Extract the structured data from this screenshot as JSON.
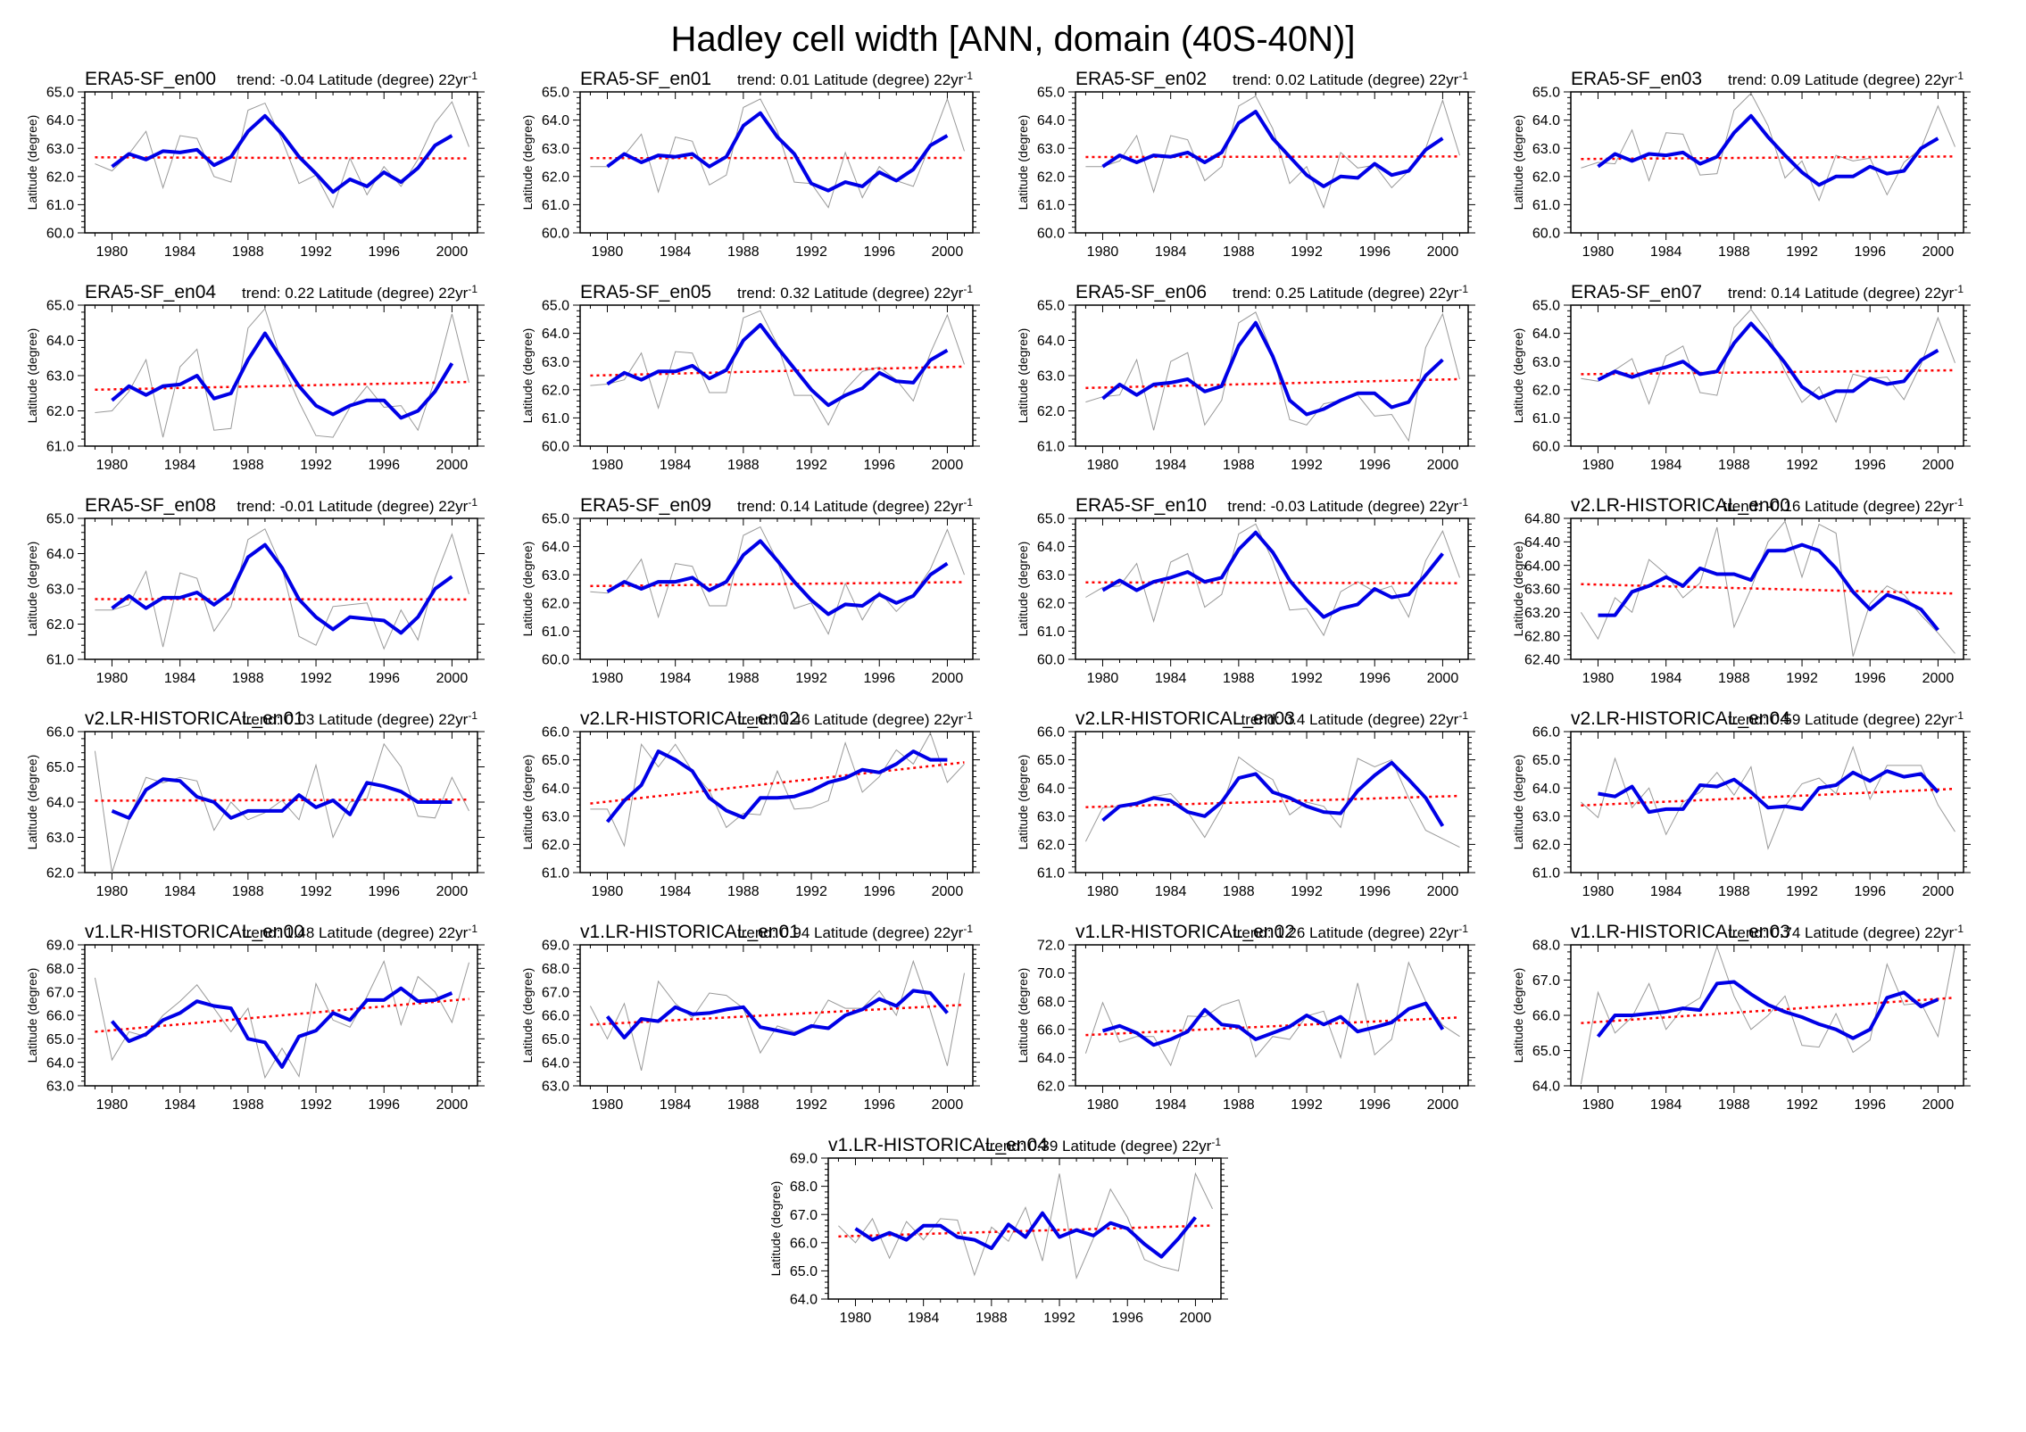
{
  "page_title": "Hadley cell width [ANN, domain (40S-40N)]",
  "axis": {
    "ylabel": "Latitude (degree)",
    "trend_prefix": "trend:",
    "trend_unit": "Latitude (degree) 22yr",
    "trend_exponent": "-1",
    "xticks": [
      1980,
      1984,
      1988,
      1992,
      1996,
      2000
    ],
    "xlim": [
      1978.4,
      2001.5
    ],
    "gray_start_year": 1979,
    "blue_start_year": 1980,
    "series_names": {
      "gray": "annual",
      "blue": "smoothed",
      "red": "linear trend"
    },
    "colors": {
      "gray": "#999999",
      "blue": "#0000e6",
      "red": "#ff0000",
      "frame": "#000000"
    }
  },
  "chart_data": [
    {
      "type": "line",
      "title": "ERA5-SF_en00",
      "trend": "-0.04",
      "ylim": [
        60,
        65
      ],
      "ystep": 1,
      "ydec": 1,
      "gray": [
        62.45,
        62.2,
        62.8,
        63.6,
        61.6,
        63.45,
        63.35,
        62.0,
        61.8,
        64.35,
        64.6,
        63.3,
        61.75,
        62.05,
        60.9,
        62.65,
        61.35,
        62.35,
        61.65,
        62.6,
        63.9,
        64.65,
        63.05
      ],
      "blue": [
        62.35,
        62.8,
        62.6,
        62.9,
        62.85,
        62.95,
        62.4,
        62.7,
        63.6,
        64.15,
        63.5,
        62.7,
        62.1,
        61.45,
        61.9,
        61.65,
        62.15,
        61.8,
        62.3,
        63.1,
        63.45
      ],
      "red": [
        62.68,
        62.64
      ]
    },
    {
      "type": "line",
      "title": "ERA5-SF_en01",
      "trend": "0.01",
      "ylim": [
        60,
        65
      ],
      "ystep": 1,
      "ydec": 1,
      "gray": [
        62.35,
        62.35,
        62.75,
        63.5,
        61.45,
        63.4,
        63.25,
        61.7,
        62.05,
        64.45,
        64.75,
        63.6,
        61.8,
        61.75,
        60.9,
        62.85,
        61.25,
        62.35,
        61.85,
        61.65,
        63.15,
        64.75,
        62.9
      ],
      "blue": [
        62.35,
        62.8,
        62.5,
        62.75,
        62.7,
        62.8,
        62.35,
        62.7,
        63.8,
        64.25,
        63.4,
        62.8,
        61.75,
        61.5,
        61.8,
        61.65,
        62.15,
        61.85,
        62.25,
        63.1,
        63.45
      ],
      "red": [
        62.65,
        62.66
      ]
    },
    {
      "type": "line",
      "title": "ERA5-SF_en02",
      "trend": "0.02",
      "ylim": [
        60,
        65
      ],
      "ystep": 1,
      "ydec": 1,
      "gray": [
        62.35,
        62.35,
        62.55,
        63.45,
        61.45,
        63.45,
        63.3,
        61.85,
        62.35,
        64.5,
        64.85,
        63.7,
        61.75,
        62.35,
        60.9,
        62.85,
        62.3,
        62.4,
        61.6,
        62.2,
        63.0,
        64.7,
        62.75
      ],
      "blue": [
        62.35,
        62.75,
        62.5,
        62.75,
        62.7,
        62.85,
        62.5,
        62.85,
        63.9,
        64.3,
        63.35,
        62.7,
        62.05,
        61.65,
        62.0,
        61.95,
        62.45,
        62.05,
        62.2,
        62.95,
        63.35
      ],
      "red": [
        62.69,
        62.71
      ]
    },
    {
      "type": "line",
      "title": "ERA5-SF_en03",
      "trend": "0.09",
      "ylim": [
        60,
        65
      ],
      "ystep": 1,
      "ydec": 1,
      "gray": [
        62.3,
        62.5,
        62.45,
        63.65,
        61.85,
        63.55,
        63.5,
        62.05,
        62.1,
        64.35,
        64.95,
        63.8,
        61.95,
        62.55,
        61.15,
        62.75,
        62.55,
        62.65,
        61.35,
        62.5,
        63.0,
        64.5,
        63.05
      ],
      "blue": [
        62.35,
        62.8,
        62.55,
        62.8,
        62.75,
        62.85,
        62.45,
        62.7,
        63.55,
        64.15,
        63.4,
        62.75,
        62.15,
        61.7,
        62.0,
        62.0,
        62.35,
        62.1,
        62.2,
        63.0,
        63.35
      ],
      "red": [
        62.62,
        62.71
      ]
    },
    {
      "type": "line",
      "title": "ERA5-SF_en04",
      "trend": "0.22",
      "ylim": [
        61,
        65
      ],
      "ystep": 1,
      "ydec": 1,
      "gray": [
        61.95,
        62.0,
        62.55,
        63.45,
        61.25,
        63.25,
        63.75,
        61.45,
        61.5,
        64.35,
        64.9,
        63.35,
        62.25,
        61.3,
        61.25,
        62.1,
        62.7,
        62.1,
        62.15,
        61.45,
        62.9,
        64.75,
        62.8
      ],
      "blue": [
        62.3,
        62.7,
        62.45,
        62.7,
        62.75,
        63.0,
        62.35,
        62.5,
        63.45,
        64.2,
        63.45,
        62.7,
        62.15,
        61.9,
        62.15,
        62.3,
        62.3,
        61.8,
        62.0,
        62.55,
        63.35
      ],
      "red": [
        62.6,
        62.82
      ]
    },
    {
      "type": "line",
      "title": "ERA5-SF_en05",
      "trend": "0.32",
      "ylim": [
        60,
        65
      ],
      "ystep": 1,
      "ydec": 1,
      "gray": [
        62.15,
        62.2,
        62.35,
        63.3,
        61.35,
        63.35,
        63.3,
        61.9,
        61.9,
        64.55,
        64.8,
        63.6,
        61.8,
        61.8,
        60.75,
        62.0,
        62.65,
        62.8,
        62.35,
        61.6,
        63.3,
        64.65,
        62.9
      ],
      "blue": [
        62.2,
        62.6,
        62.35,
        62.65,
        62.65,
        62.85,
        62.4,
        62.7,
        63.75,
        64.3,
        63.5,
        62.75,
        62.0,
        61.45,
        61.8,
        62.05,
        62.6,
        62.3,
        62.25,
        63.05,
        63.4
      ],
      "red": [
        62.5,
        62.82
      ]
    },
    {
      "type": "line",
      "title": "ERA5-SF_en06",
      "trend": "0.25",
      "ylim": [
        61,
        65
      ],
      "ystep": 1,
      "ydec": 1,
      "gray": [
        62.25,
        62.4,
        62.45,
        63.45,
        61.45,
        63.4,
        63.65,
        61.6,
        62.3,
        64.5,
        64.8,
        63.6,
        61.75,
        61.6,
        62.2,
        62.3,
        62.45,
        61.85,
        61.9,
        61.15,
        63.8,
        64.75,
        62.9
      ],
      "blue": [
        62.35,
        62.75,
        62.45,
        62.75,
        62.8,
        62.9,
        62.55,
        62.7,
        63.85,
        64.5,
        63.55,
        62.3,
        61.9,
        62.05,
        62.3,
        62.5,
        62.5,
        62.1,
        62.25,
        63.0,
        63.45
      ],
      "red": [
        62.65,
        62.9
      ]
    },
    {
      "type": "line",
      "title": "ERA5-SF_en07",
      "trend": "0.14",
      "ylim": [
        60,
        65
      ],
      "ystep": 1,
      "ydec": 1,
      "gray": [
        62.4,
        62.3,
        62.7,
        63.1,
        61.5,
        63.2,
        63.55,
        61.9,
        61.8,
        64.2,
        64.85,
        64.0,
        62.65,
        61.55,
        62.1,
        60.85,
        62.55,
        62.4,
        62.45,
        61.65,
        62.9,
        64.55,
        62.95
      ],
      "blue": [
        62.35,
        62.65,
        62.45,
        62.65,
        62.8,
        63.0,
        62.55,
        62.65,
        63.65,
        64.35,
        63.7,
        62.95,
        62.1,
        61.7,
        61.95,
        61.95,
        62.4,
        62.2,
        62.3,
        63.05,
        63.4
      ],
      "red": [
        62.55,
        62.69
      ]
    },
    {
      "type": "line",
      "title": "ERA5-SF_en08",
      "trend": "-0.01",
      "ylim": [
        61,
        65
      ],
      "ystep": 1,
      "ydec": 1,
      "gray": [
        62.4,
        62.4,
        62.55,
        63.5,
        61.35,
        63.45,
        63.3,
        61.8,
        62.5,
        64.4,
        64.7,
        63.6,
        61.65,
        61.4,
        62.5,
        62.55,
        62.6,
        61.3,
        62.4,
        61.55,
        63.3,
        64.55,
        62.85
      ],
      "blue": [
        62.45,
        62.8,
        62.45,
        62.75,
        62.75,
        62.9,
        62.55,
        62.9,
        63.9,
        64.25,
        63.6,
        62.7,
        62.2,
        61.85,
        62.2,
        62.15,
        62.1,
        61.75,
        62.2,
        63.0,
        63.35
      ],
      "red": [
        62.71,
        62.7
      ]
    },
    {
      "type": "line",
      "title": "ERA5-SF_en09",
      "trend": "0.14",
      "ylim": [
        60,
        65
      ],
      "ystep": 1,
      "ydec": 1,
      "gray": [
        62.4,
        62.35,
        62.7,
        63.55,
        61.5,
        63.4,
        63.3,
        61.9,
        61.9,
        64.4,
        64.7,
        63.5,
        61.8,
        62.0,
        60.9,
        62.7,
        61.4,
        62.4,
        61.7,
        62.3,
        63.2,
        64.6,
        63.0
      ],
      "blue": [
        62.4,
        62.75,
        62.5,
        62.75,
        62.75,
        62.9,
        62.45,
        62.75,
        63.7,
        64.2,
        63.5,
        62.75,
        62.1,
        61.6,
        61.95,
        61.9,
        62.3,
        62.0,
        62.25,
        63.0,
        63.4
      ],
      "red": [
        62.6,
        62.74
      ]
    },
    {
      "type": "line",
      "title": "ERA5-SF_en10",
      "trend": "-0.03",
      "ylim": [
        60,
        65
      ],
      "ystep": 1,
      "ydec": 1,
      "gray": [
        62.2,
        62.55,
        62.6,
        63.4,
        61.35,
        63.45,
        63.75,
        61.85,
        62.3,
        64.45,
        64.8,
        63.5,
        61.75,
        61.8,
        60.85,
        62.4,
        62.75,
        62.4,
        62.6,
        61.5,
        63.5,
        64.55,
        62.9
      ],
      "blue": [
        62.45,
        62.8,
        62.45,
        62.75,
        62.9,
        63.1,
        62.75,
        62.9,
        63.9,
        64.5,
        63.8,
        62.8,
        62.1,
        61.5,
        61.8,
        61.95,
        62.5,
        62.2,
        62.3,
        63.0,
        63.75
      ],
      "red": [
        62.73,
        62.7
      ]
    },
    {
      "type": "line",
      "title": "v2.LR-HISTORICAL_en00",
      "trend": "-0.16",
      "ylim": [
        62.4,
        64.8
      ],
      "ystep": 0.4,
      "ydec": 2,
      "gray": [
        63.2,
        62.75,
        63.45,
        63.2,
        64.1,
        63.85,
        63.45,
        63.7,
        64.65,
        62.95,
        63.6,
        64.4,
        64.75,
        63.8,
        64.7,
        64.55,
        62.45,
        63.35,
        63.65,
        63.5,
        63.15,
        62.85,
        62.5
      ],
      "blue": [
        63.15,
        63.15,
        63.55,
        63.65,
        63.8,
        63.65,
        63.95,
        63.85,
        63.85,
        63.75,
        64.25,
        64.25,
        64.35,
        64.25,
        63.95,
        63.55,
        63.25,
        63.5,
        63.4,
        63.25,
        62.9
      ],
      "red": [
        63.68,
        63.52
      ]
    },
    {
      "type": "line",
      "title": "v2.LR-HISTORICAL_en01",
      "trend": "0.03",
      "ylim": [
        62,
        66
      ],
      "ystep": 1,
      "ydec": 1,
      "gray": [
        65.45,
        62.0,
        63.5,
        64.7,
        64.55,
        64.7,
        64.6,
        63.2,
        64.0,
        63.5,
        63.7,
        64.05,
        63.5,
        65.05,
        63.0,
        64.0,
        64.1,
        65.65,
        65.0,
        63.6,
        63.55,
        64.7,
        63.75
      ],
      "blue": [
        63.75,
        63.55,
        64.35,
        64.65,
        64.6,
        64.15,
        64.0,
        63.55,
        63.75,
        63.75,
        63.75,
        64.2,
        63.85,
        64.05,
        63.65,
        64.55,
        64.45,
        64.3,
        64.0,
        64.0,
        64.0
      ],
      "red": [
        64.04,
        64.07
      ]
    },
    {
      "type": "line",
      "title": "v2.LR-HISTORICAL_en02",
      "trend": "1.46",
      "ylim": [
        61,
        66
      ],
      "ystep": 1,
      "ydec": 1,
      "gray": [
        63.25,
        63.25,
        61.95,
        65.55,
        64.75,
        65.55,
        64.6,
        63.9,
        62.6,
        63.1,
        63.05,
        64.6,
        63.25,
        63.3,
        63.55,
        65.6,
        63.85,
        64.4,
        65.35,
        64.85,
        65.95,
        64.2,
        64.85
      ],
      "blue": [
        62.8,
        63.55,
        64.1,
        65.3,
        65.0,
        64.6,
        63.65,
        63.2,
        62.95,
        63.65,
        63.65,
        63.7,
        63.9,
        64.2,
        64.35,
        64.65,
        64.55,
        64.85,
        65.3,
        65.0,
        65.0
      ],
      "red": [
        63.45,
        64.91
      ]
    },
    {
      "type": "line",
      "title": "v2.LR-HISTORICAL_en03",
      "trend": "0.4",
      "ylim": [
        61,
        66
      ],
      "ystep": 1,
      "ydec": 1,
      "gray": [
        62.1,
        63.3,
        63.35,
        63.5,
        63.7,
        63.8,
        63.15,
        62.25,
        63.3,
        65.1,
        64.65,
        64.3,
        63.05,
        63.5,
        63.35,
        62.6,
        65.05,
        64.75,
        65.0,
        63.65,
        62.5,
        62.2,
        61.9
      ],
      "blue": [
        62.85,
        63.35,
        63.45,
        63.65,
        63.55,
        63.15,
        63.0,
        63.5,
        64.35,
        64.5,
        63.85,
        63.65,
        63.35,
        63.15,
        63.1,
        63.9,
        64.45,
        64.9,
        64.3,
        63.65,
        62.65
      ],
      "red": [
        63.32,
        63.72
      ]
    },
    {
      "type": "line",
      "title": "v2.LR-HISTORICAL_en04",
      "trend": "0.59",
      "ylim": [
        61,
        66
      ],
      "ystep": 1,
      "ydec": 1,
      "gray": [
        63.5,
        62.95,
        65.05,
        63.3,
        64.0,
        62.35,
        63.5,
        63.85,
        64.55,
        63.75,
        64.75,
        61.85,
        63.35,
        64.15,
        64.35,
        63.8,
        65.45,
        63.6,
        64.8,
        64.8,
        64.8,
        63.4,
        62.45
      ],
      "blue": [
        63.8,
        63.7,
        64.05,
        63.15,
        63.25,
        63.25,
        64.1,
        64.05,
        64.3,
        63.85,
        63.3,
        63.35,
        63.25,
        64.0,
        64.1,
        64.55,
        64.25,
        64.6,
        64.4,
        64.5,
        63.85
      ],
      "red": [
        63.38,
        63.97
      ]
    },
    {
      "type": "line",
      "title": "v1.LR-HISTORICAL_en00",
      "trend": "1.48",
      "ylim": [
        63,
        69
      ],
      "ystep": 1,
      "ydec": 1,
      "gray": [
        67.6,
        64.1,
        65.3,
        65.1,
        66.0,
        66.6,
        67.3,
        66.3,
        65.3,
        66.3,
        63.35,
        64.6,
        63.4,
        67.35,
        65.8,
        65.5,
        66.8,
        68.3,
        65.6,
        67.65,
        67.0,
        65.7,
        68.25
      ],
      "blue": [
        65.75,
        64.9,
        65.2,
        65.8,
        66.1,
        66.6,
        66.4,
        66.3,
        65.0,
        64.85,
        63.8,
        65.1,
        65.35,
        66.1,
        65.8,
        66.65,
        66.65,
        67.15,
        66.6,
        66.65,
        66.95
      ],
      "red": [
        65.3,
        66.7
      ]
    },
    {
      "type": "line",
      "title": "v1.LR-HISTORICAL_en01",
      "trend": "0.94",
      "ylim": [
        63,
        69
      ],
      "ystep": 1,
      "ydec": 1,
      "gray": [
        66.4,
        65.0,
        66.5,
        63.65,
        67.45,
        66.5,
        65.9,
        66.95,
        66.85,
        66.3,
        64.4,
        65.55,
        65.3,
        65.45,
        66.65,
        66.3,
        66.3,
        67.05,
        66.0,
        68.3,
        66.2,
        63.85,
        67.8
      ],
      "blue": [
        65.95,
        65.05,
        65.85,
        65.75,
        66.35,
        66.05,
        66.1,
        66.25,
        66.35,
        65.5,
        65.35,
        65.2,
        65.55,
        65.45,
        66.0,
        66.25,
        66.7,
        66.4,
        67.05,
        66.95,
        66.1
      ],
      "red": [
        65.6,
        66.45
      ]
    },
    {
      "type": "line",
      "title": "v1.LR-HISTORICAL_en02",
      "trend": "1.26",
      "ylim": [
        62,
        72
      ],
      "ystep": 2,
      "ydec": 1,
      "gray": [
        64.3,
        67.9,
        65.1,
        65.5,
        65.5,
        63.45,
        66.95,
        66.9,
        67.7,
        68.1,
        64.05,
        65.5,
        65.3,
        66.95,
        67.3,
        64.0,
        69.3,
        64.2,
        65.3,
        70.75,
        68.0,
        66.3,
        65.5
      ],
      "blue": [
        65.9,
        66.25,
        65.75,
        64.9,
        65.3,
        65.85,
        67.4,
        66.35,
        66.2,
        65.3,
        65.75,
        66.2,
        67.0,
        66.35,
        66.9,
        65.85,
        66.15,
        66.5,
        67.45,
        67.85,
        66.0
      ],
      "red": [
        65.6,
        66.85
      ]
    },
    {
      "type": "line",
      "title": "v1.LR-HISTORICAL_en03",
      "trend": "0.74",
      "ylim": [
        64,
        68
      ],
      "ystep": 1,
      "ydec": 1,
      "gray": [
        64.05,
        66.65,
        65.5,
        65.95,
        66.9,
        65.6,
        66.2,
        66.5,
        67.95,
        66.55,
        65.6,
        66.0,
        66.55,
        65.15,
        65.1,
        66.05,
        64.95,
        65.3,
        67.45,
        66.3,
        66.35,
        65.4,
        67.95
      ],
      "blue": [
        65.4,
        66.0,
        66.0,
        66.05,
        66.1,
        66.2,
        66.15,
        66.9,
        66.95,
        66.6,
        66.3,
        66.1,
        65.95,
        65.75,
        65.6,
        65.35,
        65.6,
        66.5,
        66.65,
        66.25,
        66.45
      ],
      "red": [
        65.78,
        66.5
      ]
    },
    {
      "type": "line",
      "title": "v1.LR-HISTORICAL_en04",
      "trend": "0.39",
      "ylim": [
        64,
        69
      ],
      "ystep": 1,
      "ydec": 1,
      "gray": [
        66.6,
        66.0,
        66.85,
        65.45,
        66.75,
        66.1,
        66.85,
        66.8,
        64.85,
        66.55,
        66.05,
        67.25,
        65.35,
        68.45,
        64.75,
        66.15,
        67.9,
        66.9,
        65.4,
        65.15,
        65.0,
        68.45,
        67.2
      ],
      "blue": [
        66.5,
        66.1,
        66.35,
        66.1,
        66.6,
        66.6,
        66.2,
        66.1,
        65.8,
        66.65,
        66.2,
        67.05,
        66.2,
        66.45,
        66.25,
        66.7,
        66.5,
        65.95,
        65.5,
        66.15,
        66.9
      ],
      "red": [
        66.22,
        66.61
      ]
    }
  ]
}
